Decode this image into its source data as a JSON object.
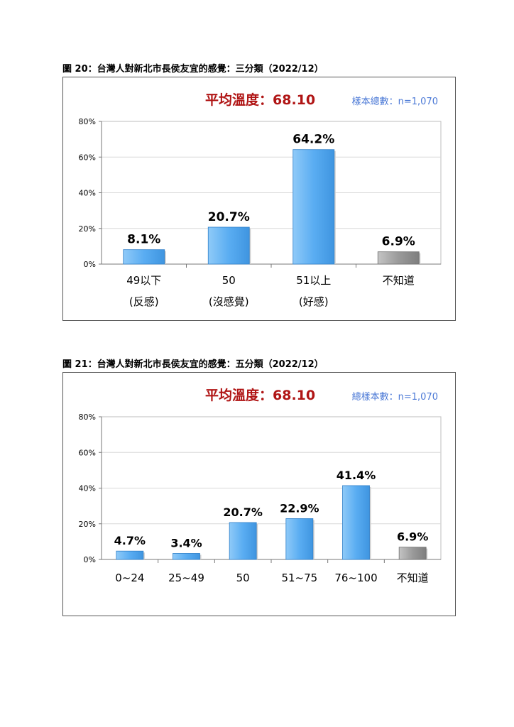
{
  "chart_data": [
    {
      "type": "bar",
      "caption": "圖 20：台灣人對新北市長侯友宜的感覺：三分類（2022/12）",
      "title": "平均溫度：68.10",
      "sample_note": "樣本總數：n=1,070",
      "categories": [
        [
          "49以下",
          "(反感)"
        ],
        [
          "50",
          "(沒感覺)"
        ],
        [
          "51以上",
          "(好感)"
        ],
        [
          "不知道"
        ]
      ],
      "values": [
        8.1,
        20.7,
        64.2,
        6.9
      ],
      "value_labels": [
        "8.1%",
        "20.7%",
        "64.2%",
        "6.9%"
      ],
      "bar_colors": [
        "#5aadf2",
        "#5aadf2",
        "#5aadf2",
        "#9a9a9a"
      ],
      "ylim": [
        0,
        80
      ],
      "yticks": [
        "0%",
        "20%",
        "40%",
        "60%",
        "80%"
      ],
      "grid": true
    },
    {
      "type": "bar",
      "caption": "圖 21：台灣人對新北市長侯友宜的感覺：五分類（2022/12）",
      "title": "平均溫度：68.10",
      "sample_note": "總樣本數：n=1,070",
      "categories": [
        [
          "0~24"
        ],
        [
          "25~49"
        ],
        [
          "50"
        ],
        [
          "51~75"
        ],
        [
          "76~100"
        ],
        [
          "不知道"
        ]
      ],
      "values": [
        4.7,
        3.4,
        20.7,
        22.9,
        41.4,
        6.9
      ],
      "value_labels": [
        "4.7%",
        "3.4%",
        "20.7%",
        "22.9%",
        "41.4%",
        "6.9%"
      ],
      "bar_colors": [
        "#5aadf2",
        "#5aadf2",
        "#5aadf2",
        "#5aadf2",
        "#5aadf2",
        "#9a9a9a"
      ],
      "ylim": [
        0,
        80
      ],
      "yticks": [
        "0%",
        "20%",
        "40%",
        "60%",
        "80%"
      ],
      "grid": true
    }
  ],
  "colors": {
    "title_red": "#b01515",
    "note_blue": "#4a78d6",
    "bar_blue": "#5aadf2",
    "bar_gray": "#9a9a9a"
  }
}
